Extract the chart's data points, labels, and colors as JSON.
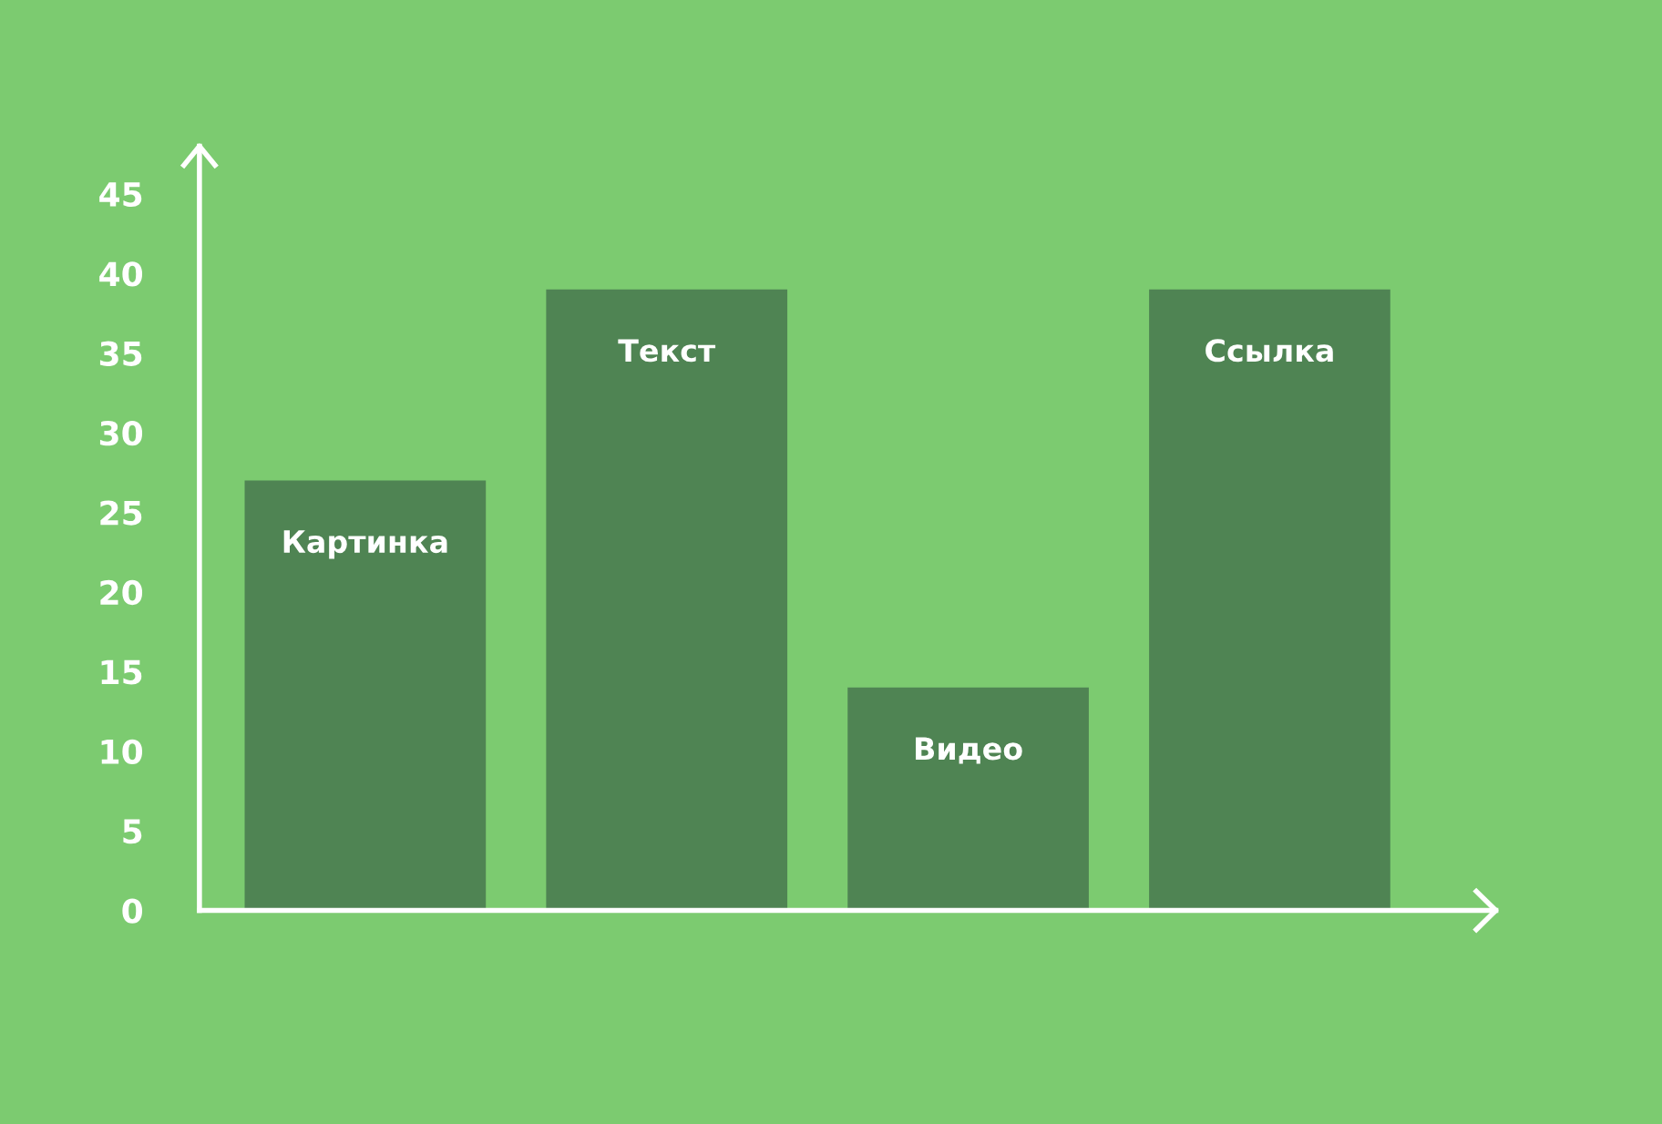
{
  "chart_data": {
    "type": "bar",
    "categories": [
      "Картинка",
      "Текст",
      "Видео",
      "Ссылка"
    ],
    "values": [
      27,
      39,
      14,
      39
    ],
    "color": "#4f8453",
    "ylim": [
      0,
      48
    ],
    "yticks": [
      0,
      5,
      10,
      15,
      20,
      25,
      30,
      35,
      40,
      45
    ],
    "tick_labels": "y",
    "grid": false,
    "legend": false
  }
}
